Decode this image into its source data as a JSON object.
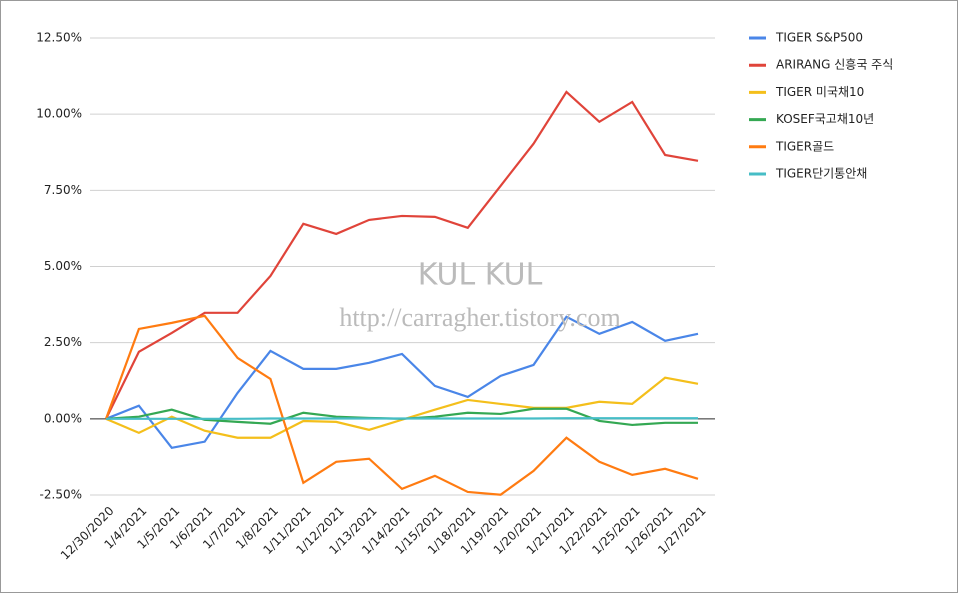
{
  "chart_data": {
    "type": "line",
    "categories": [
      "12/30/2020",
      "1/4/2021",
      "1/5/2021",
      "1/6/2021",
      "1/7/2021",
      "1/8/2021",
      "1/11/2021",
      "1/12/2021",
      "1/13/2021",
      "1/14/2021",
      "1/15/2021",
      "1/18/2021",
      "1/19/2021",
      "1/20/2021",
      "1/21/2021",
      "1/22/2021",
      "1/25/2021",
      "1/26/2021",
      "1/27/2021"
    ],
    "series": [
      {
        "name": "TIGER S&P500",
        "color": "#4a86e8",
        "values": [
          0,
          0.43,
          -0.95,
          -0.75,
          0.85,
          2.23,
          1.64,
          1.64,
          1.84,
          2.13,
          1.08,
          0.72,
          1.41,
          1.77,
          3.35,
          2.79,
          3.18,
          2.56,
          2.79
        ]
      },
      {
        "name": "ARIRANG 신흥국 주식",
        "color": "#e0443a",
        "values": [
          0,
          2.2,
          2.82,
          3.48,
          3.48,
          4.69,
          6.4,
          6.07,
          6.53,
          6.66,
          6.63,
          6.27,
          7.65,
          9.03,
          10.73,
          9.75,
          10.4,
          8.66,
          8.47
        ]
      },
      {
        "name": "TIGER 미국채10",
        "color": "#f4bf1b",
        "values": [
          0,
          -0.46,
          0.07,
          -0.39,
          -0.62,
          -0.62,
          -0.07,
          -0.1,
          -0.36,
          -0.03,
          0.3,
          0.62,
          0.49,
          0.36,
          0.36,
          0.56,
          0.49,
          1.35,
          1.15
        ]
      },
      {
        "name": "KOSEF국고채10년",
        "color": "#34a853",
        "values": [
          0,
          0.07,
          0.3,
          -0.03,
          -0.1,
          -0.16,
          0.2,
          0.07,
          0.03,
          0,
          0.07,
          0.2,
          0.16,
          0.33,
          0.33,
          -0.07,
          -0.2,
          -0.13,
          -0.13
        ]
      },
      {
        "name": "TIGER골드",
        "color": "#ff7b11",
        "values": [
          0,
          2.95,
          3.15,
          3.38,
          2.0,
          1.31,
          -2.1,
          -1.41,
          -1.31,
          -2.3,
          -1.87,
          -2.4,
          -2.49,
          -1.71,
          -0.62,
          -1.41,
          -1.84,
          -1.64,
          -1.97
        ]
      },
      {
        "name": "TIGER단기통안채",
        "color": "#46bdc6",
        "values": [
          0,
          0,
          0,
          0,
          0,
          0.01,
          0.01,
          0.01,
          0.01,
          0.01,
          0.01,
          0.01,
          0.01,
          0.01,
          0.02,
          0.02,
          0.02,
          0.02,
          0.02
        ]
      }
    ],
    "ylim": [
      -2.5,
      12.5
    ],
    "yticks": [
      {
        "value": -2.5,
        "label": "-2.50%"
      },
      {
        "value": 0,
        "label": "0.00%"
      },
      {
        "value": 2.5,
        "label": "2.50%"
      },
      {
        "value": 5,
        "label": "5.00%"
      },
      {
        "value": 7.5,
        "label": "7.50%"
      },
      {
        "value": 10,
        "label": "10.00%"
      },
      {
        "value": 12.5,
        "label": "12.50%"
      }
    ],
    "grid": true,
    "watermark": [
      "KUL KUL",
      "http://carragher.tistory.com"
    ]
  }
}
